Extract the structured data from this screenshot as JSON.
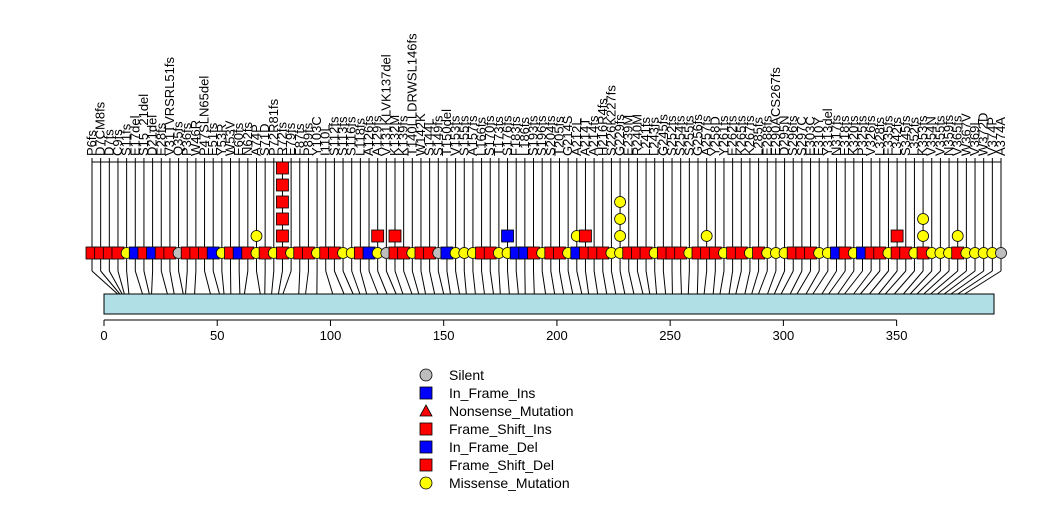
{
  "chart_data": {
    "type": "scatter",
    "title": "",
    "xlabel": "",
    "ylabel": "",
    "xlim": [
      0,
      393
    ],
    "protein_length": 393,
    "x_ticks": [
      0,
      50,
      100,
      150,
      200,
      250,
      300,
      350
    ],
    "colors": {
      "Silent": "#bebebe",
      "In_Frame_Ins": "#0000ff",
      "Nonsense_Mutation": "#ff0000",
      "Frame_Shift_Ins": "#ff0000",
      "In_Frame_Del": "#0000ff",
      "Frame_Shift_Del": "#ff0000",
      "Missense_Mutation": "#ffff00",
      "domain": "#b0e0e6",
      "stem": "#000000"
    },
    "legend": {
      "placement": "bottom-center",
      "entries": [
        {
          "label": "Silent",
          "shape": "circle",
          "color": "#bebebe"
        },
        {
          "label": "In_Frame_Ins",
          "shape": "square",
          "color": "#0000ff"
        },
        {
          "label": "Nonsense_Mutation",
          "shape": "triangle",
          "color": "#ff0000"
        },
        {
          "label": "Frame_Shift_Ins",
          "shape": "square",
          "color": "#ff0000"
        },
        {
          "label": "In_Frame_Del",
          "shape": "square",
          "color": "#0000ff"
        },
        {
          "label": "Frame_Shift_Del",
          "shape": "square",
          "color": "#ff0000"
        },
        {
          "label": "Missense_Mutation",
          "shape": "circle",
          "color": "#ffff00"
        }
      ]
    },
    "mutation_labels": [
      {
        "label": "P6fs",
        "pos": 6
      },
      {
        "label": "D7CM8fs",
        "pos": 7
      },
      {
        "label": "D7fs",
        "pos": 8
      },
      {
        "label": "C9fs",
        "pos": 9
      },
      {
        "label": "S11fs",
        "pos": 11
      },
      {
        "label": "E17del",
        "pos": 17
      },
      {
        "label": "S15_21del",
        "pos": 20
      },
      {
        "label": "D21del",
        "pos": 21
      },
      {
        "label": "E28fs",
        "pos": 28
      },
      {
        "label": "V31TVRSRL51fs",
        "pos": 31
      },
      {
        "label": "Q35fs",
        "pos": 35
      },
      {
        "label": "P36fs",
        "pos": 36
      },
      {
        "label": "W46R",
        "pos": 40
      },
      {
        "label": "P47SLN65del",
        "pos": 47
      },
      {
        "label": "E51fs",
        "pos": 51
      },
      {
        "label": "Y53R",
        "pos": 53
      },
      {
        "label": "W53V",
        "pos": 56
      },
      {
        "label": "E60fs",
        "pos": 60
      },
      {
        "label": "N62fs",
        "pos": 62
      },
      {
        "label": "A74P",
        "pos": 69
      },
      {
        "label": "S71D",
        "pos": 71
      },
      {
        "label": "P72R81fs",
        "pos": 74
      },
      {
        "label": "R72fs",
        "pos": 77
      },
      {
        "label": "E79fs",
        "pos": 79
      },
      {
        "label": "F87fs",
        "pos": 86
      },
      {
        "label": "P89fs",
        "pos": 89
      },
      {
        "label": "Y103C",
        "pos": 94
      },
      {
        "label": "I110L",
        "pos": 101
      },
      {
        "label": "S112fs",
        "pos": 106
      },
      {
        "label": "S113fs",
        "pos": 110
      },
      {
        "label": "S116fs",
        "pos": 113
      },
      {
        "label": "L118fs",
        "pos": 116
      },
      {
        "label": "A126fs",
        "pos": 121
      },
      {
        "label": "A129fs",
        "pos": 125
      },
      {
        "label": "V131KLVK137del",
        "pos": 129
      },
      {
        "label": "K132M",
        "pos": 132
      },
      {
        "label": "K139fs",
        "pos": 136
      },
      {
        "label": "T140LLDRWSL146fs",
        "pos": 139
      },
      {
        "label": "W142K",
        "pos": 142
      },
      {
        "label": "S144L",
        "pos": 146
      },
      {
        "label": "S149fs",
        "pos": 150
      },
      {
        "label": "T150del",
        "pos": 153
      },
      {
        "label": "V153fs",
        "pos": 157
      },
      {
        "label": "S155fs",
        "pos": 160
      },
      {
        "label": "A157fs",
        "pos": 164
      },
      {
        "label": "L166fs",
        "pos": 168
      },
      {
        "label": "S170fs",
        "pos": 172
      },
      {
        "label": "T173fs",
        "pos": 175
      },
      {
        "label": "S176fs",
        "pos": 179
      },
      {
        "label": "F183fs",
        "pos": 183
      },
      {
        "label": "L186fs",
        "pos": 186
      },
      {
        "label": "S193fs",
        "pos": 190
      },
      {
        "label": "S196fs",
        "pos": 195
      },
      {
        "label": "S204fs",
        "pos": 199
      },
      {
        "label": "T205fs",
        "pos": 203
      },
      {
        "label": "G214S",
        "pos": 207
      },
      {
        "label": "A212L",
        "pos": 211
      },
      {
        "label": "A214T",
        "pos": 214
      },
      {
        "label": "A214fs",
        "pos": 218
      },
      {
        "label": "H216R4fs",
        "pos": 222
      },
      {
        "label": "S226K227fs",
        "pos": 226
      },
      {
        "label": "G229fs",
        "pos": 230
      },
      {
        "label": "E239M",
        "pos": 234
      },
      {
        "label": "R240M",
        "pos": 238
      },
      {
        "label": "L241fs",
        "pos": 241
      },
      {
        "label": "L243fs",
        "pos": 244
      },
      {
        "label": "G245fs",
        "pos": 248
      },
      {
        "label": "S252fs",
        "pos": 251
      },
      {
        "label": "S254fs",
        "pos": 255
      },
      {
        "label": "S255fs",
        "pos": 258
      },
      {
        "label": "G256fs",
        "pos": 262
      },
      {
        "label": "A257fs",
        "pos": 265
      },
      {
        "label": "Y258D",
        "pos": 269
      },
      {
        "label": "Y261fs",
        "pos": 272
      },
      {
        "label": "E262fs",
        "pos": 276
      },
      {
        "label": "K265fs",
        "pos": 279
      },
      {
        "label": "K267fs",
        "pos": 283
      },
      {
        "label": "L285fs",
        "pos": 286
      },
      {
        "label": "E288fs",
        "pos": 289
      },
      {
        "label": "E290ACS267fs",
        "pos": 293
      },
      {
        "label": "D295N",
        "pos": 296
      },
      {
        "label": "S296fs",
        "pos": 299
      },
      {
        "label": "S297C",
        "pos": 303
      },
      {
        "label": "E303C",
        "pos": 306
      },
      {
        "label": "E310Y",
        "pos": 310
      },
      {
        "label": "Y313del",
        "pos": 313
      },
      {
        "label": "N317fs",
        "pos": 317
      },
      {
        "label": "E318fs",
        "pos": 320
      },
      {
        "label": "K320fs",
        "pos": 324
      },
      {
        "label": "P325fs",
        "pos": 327
      },
      {
        "label": "V326fs",
        "pos": 331
      },
      {
        "label": "L328fs",
        "pos": 334
      },
      {
        "label": "E335fs",
        "pos": 338
      },
      {
        "label": "L342fs",
        "pos": 342
      },
      {
        "label": "S345fs",
        "pos": 345
      },
      {
        "label": "L352fs",
        "pos": 349
      },
      {
        "label": "K353fs",
        "pos": 353
      },
      {
        "label": "V354N",
        "pos": 356
      },
      {
        "label": "V355fs",
        "pos": 359
      },
      {
        "label": "N359fs",
        "pos": 362
      },
      {
        "label": "V365fs",
        "pos": 365
      },
      {
        "label": "W367V",
        "pos": 368
      },
      {
        "label": "V369L",
        "pos": 371
      },
      {
        "label": "W372D",
        "pos": 374
      },
      {
        "label": "V374P",
        "pos": 377
      },
      {
        "label": "A374A",
        "pos": 380
      }
    ]
  }
}
